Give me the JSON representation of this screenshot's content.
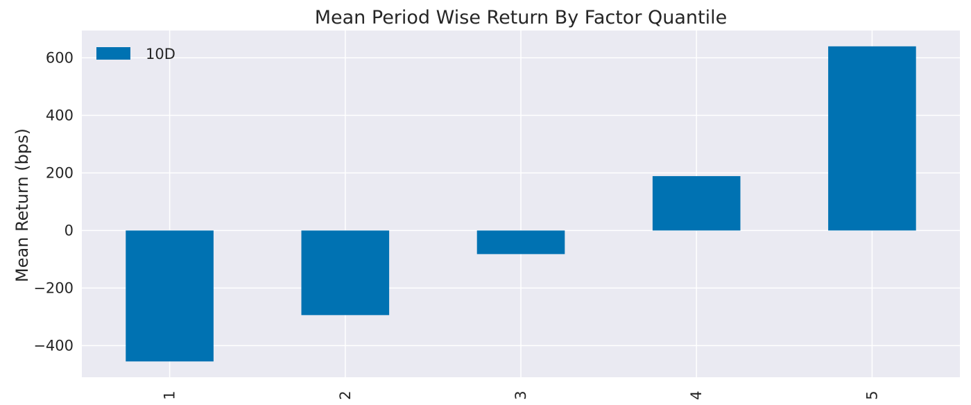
{
  "chart_data": {
    "type": "bar",
    "title": "Mean Period Wise Return By Factor Quantile",
    "xlabel": "",
    "ylabel": "Mean Return (bps)",
    "categories": [
      "1",
      "2",
      "3",
      "4",
      "5"
    ],
    "series": [
      {
        "name": "10D",
        "values": [
          -455,
          -294,
          -82,
          189,
          640
        ],
        "color": "#0072b2"
      }
    ],
    "ylim": [
      -510,
      695
    ],
    "yticks": [
      -400,
      -200,
      0,
      200,
      400,
      600
    ],
    "ytick_labels": [
      "−400",
      "−200",
      "0",
      "200",
      "400",
      "600"
    ],
    "grid": true,
    "legend_position": "top-left",
    "background_color": "#eaeaf2"
  }
}
